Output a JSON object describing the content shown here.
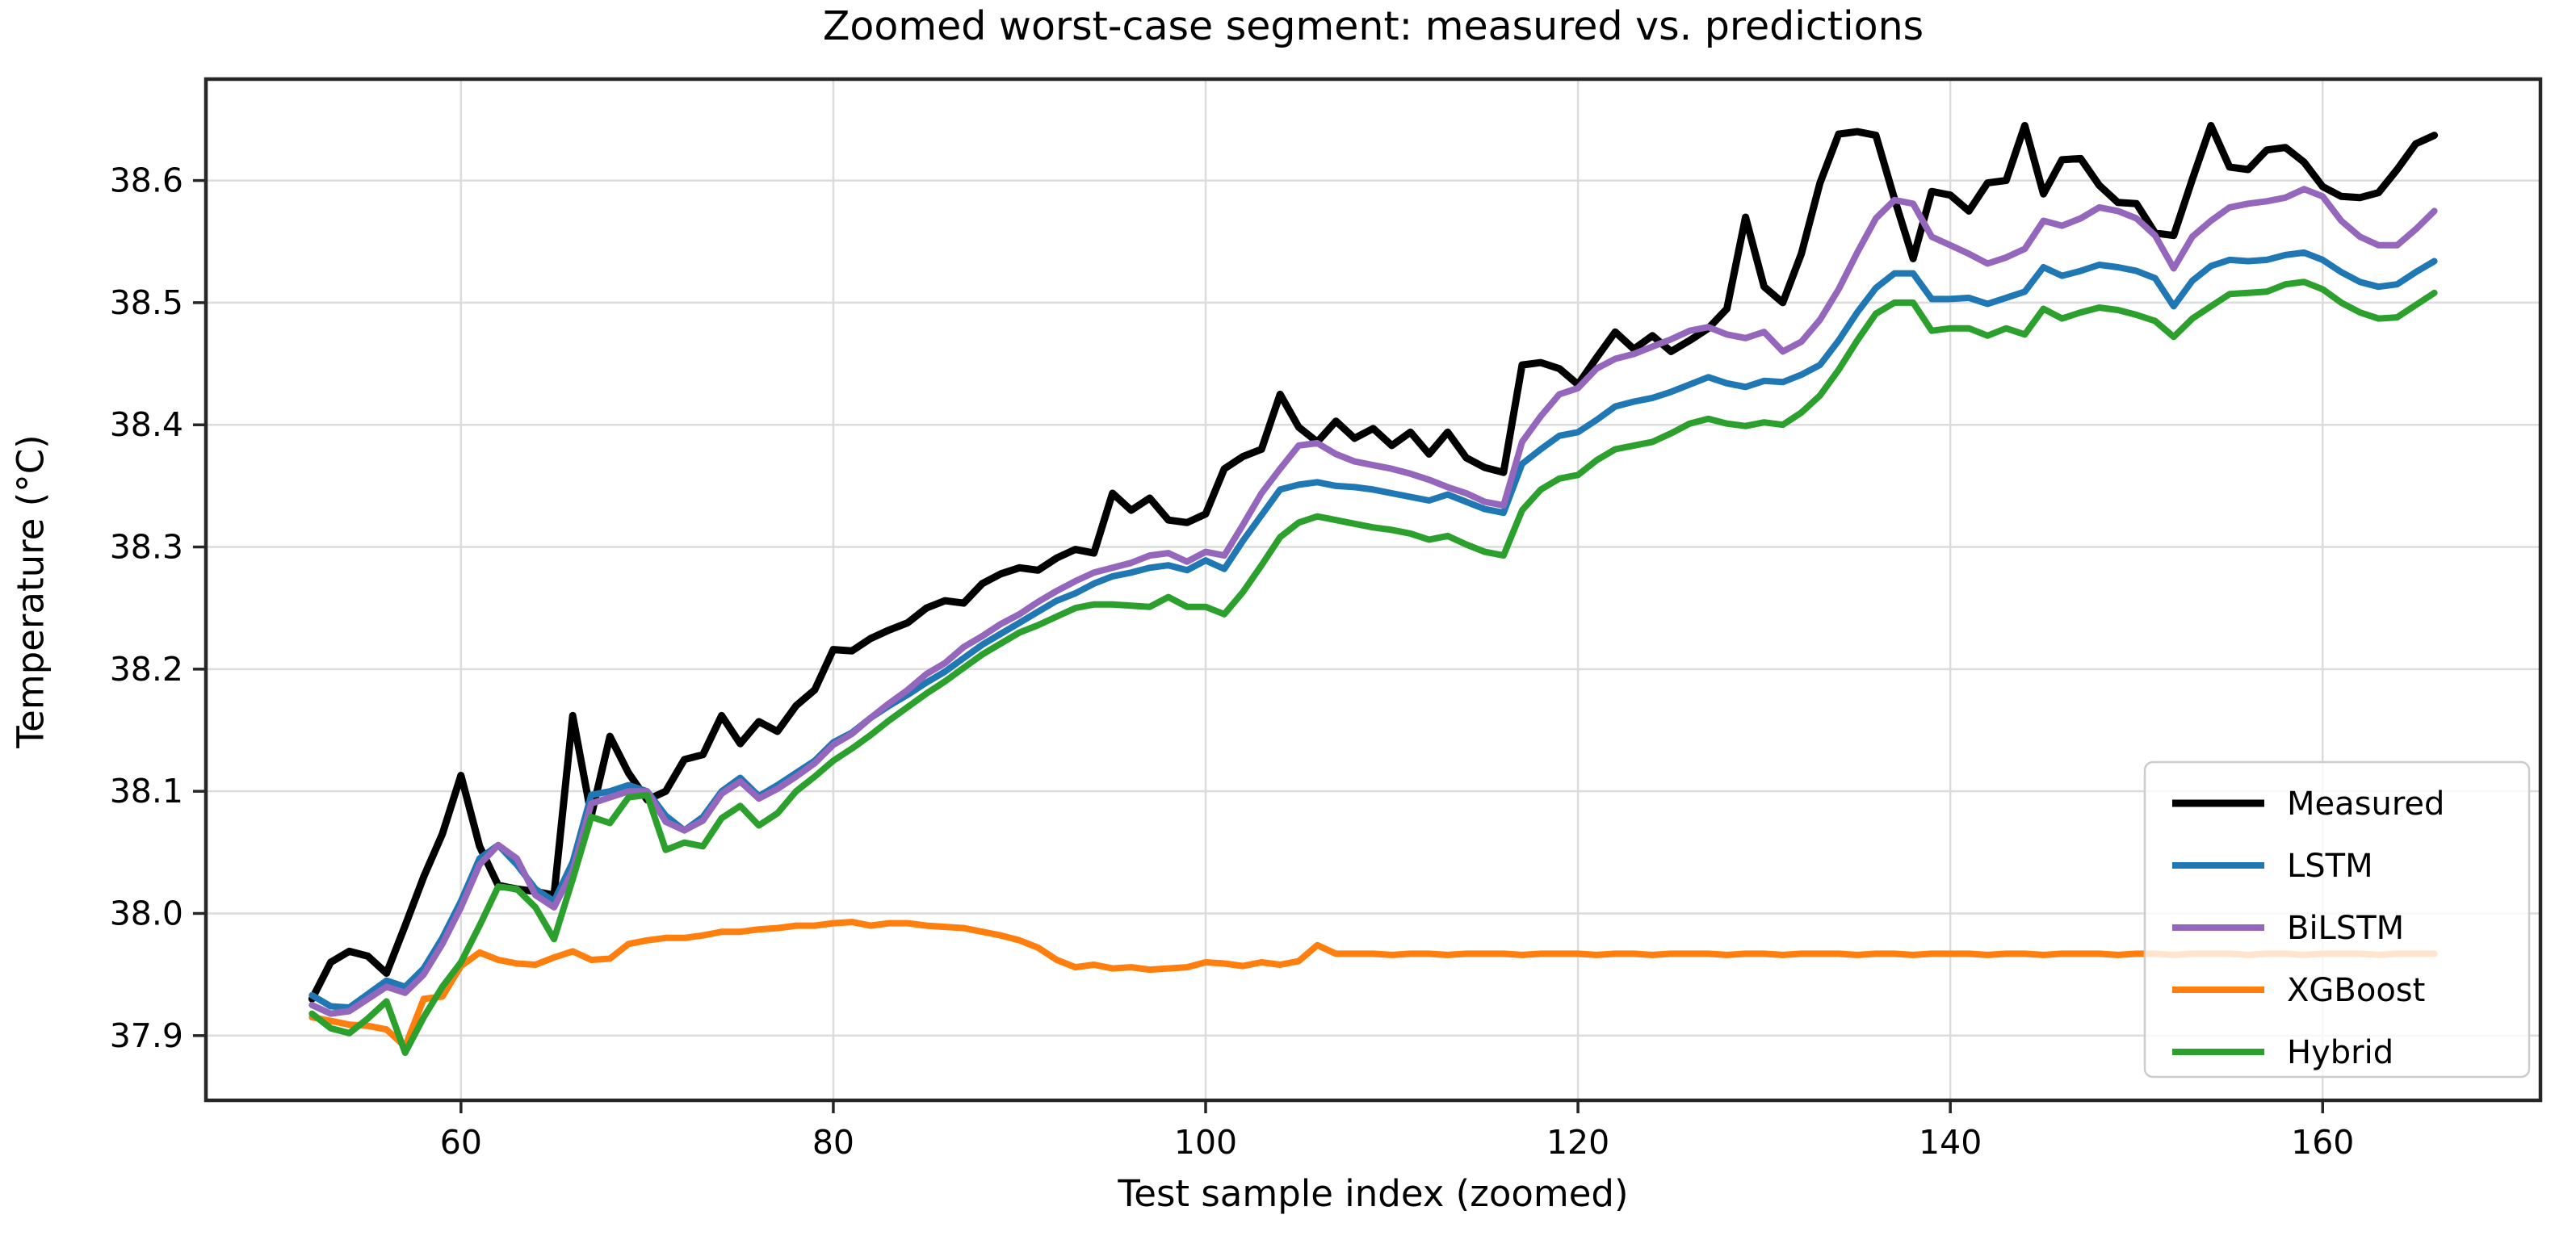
{
  "chart_data": {
    "type": "line",
    "title": "Zoomed worst-case segment: measured vs. predictions",
    "xlabel": "Test sample index (zoomed)",
    "ylabel": "Temperature (°C)",
    "xlim": [
      46.3,
      171.7
    ],
    "ylim": [
      37.847,
      38.683
    ],
    "x_ticks": [
      60,
      80,
      100,
      120,
      140,
      160
    ],
    "y_ticks": [
      37.9,
      38.0,
      38.1,
      38.2,
      38.3,
      38.4,
      38.5,
      38.6
    ],
    "grid": true,
    "grid_color": "#dcdcdc",
    "spine_color": "#262626",
    "legend_position": "lower right",
    "legend_frame_alpha": 0.8,
    "x_start": 52,
    "series": [
      {
        "name": "Measured",
        "color": "#000000",
        "linewidth": 9,
        "values": [
          37.93,
          37.96,
          37.969,
          37.965,
          37.951,
          37.99,
          38.03,
          38.065,
          38.113,
          38.055,
          38.023,
          38.02,
          38.018,
          38.015,
          38.162,
          38.08,
          38.145,
          38.115,
          38.093,
          38.1,
          38.126,
          38.13,
          38.162,
          38.139,
          38.157,
          38.149,
          38.17,
          38.183,
          38.216,
          38.215,
          38.225,
          38.232,
          38.238,
          38.25,
          38.256,
          38.254,
          38.27,
          38.278,
          38.283,
          38.281,
          38.291,
          38.298,
          38.295,
          38.344,
          38.33,
          38.34,
          38.322,
          38.32,
          38.327,
          38.364,
          38.374,
          38.38,
          38.425,
          38.398,
          38.386,
          38.403,
          38.389,
          38.397,
          38.383,
          38.394,
          38.376,
          38.394,
          38.373,
          38.365,
          38.361,
          38.449,
          38.451,
          38.446,
          38.433,
          38.455,
          38.476,
          38.462,
          38.473,
          38.46,
          38.469,
          38.479,
          38.495,
          38.57,
          38.513,
          38.5,
          38.54,
          38.598,
          38.638,
          38.64,
          38.637,
          38.585,
          38.536,
          38.591,
          38.588,
          38.575,
          38.598,
          38.6,
          38.645,
          38.589,
          38.617,
          38.618,
          38.596,
          38.582,
          38.581,
          38.557,
          38.555,
          38.601,
          38.645,
          38.611,
          38.609,
          38.625,
          38.627,
          38.615,
          38.595,
          38.587,
          38.586,
          38.59,
          38.609,
          38.63,
          38.637
        ]
      },
      {
        "name": "LSTM",
        "color": "#1f77b4",
        "linewidth": 8,
        "values": [
          37.933,
          37.924,
          37.923,
          37.934,
          37.945,
          37.94,
          37.955,
          37.98,
          38.01,
          38.045,
          38.056,
          38.04,
          38.02,
          38.01,
          38.042,
          38.097,
          38.1,
          38.105,
          38.1,
          38.08,
          38.068,
          38.079,
          38.1,
          38.111,
          38.096,
          38.105,
          38.115,
          38.125,
          38.14,
          38.148,
          38.16,
          38.17,
          38.179,
          38.189,
          38.198,
          38.209,
          38.22,
          38.229,
          38.238,
          38.247,
          38.256,
          38.262,
          38.27,
          38.276,
          38.279,
          38.283,
          38.285,
          38.281,
          38.289,
          38.282,
          38.305,
          38.326,
          38.347,
          38.351,
          38.353,
          38.35,
          38.349,
          38.347,
          38.344,
          38.341,
          38.338,
          38.343,
          38.337,
          38.331,
          38.328,
          38.368,
          38.38,
          38.391,
          38.394,
          38.404,
          38.415,
          38.419,
          38.422,
          38.427,
          38.433,
          38.439,
          38.434,
          38.431,
          38.436,
          38.435,
          38.441,
          38.449,
          38.469,
          38.492,
          38.512,
          38.524,
          38.524,
          38.503,
          38.503,
          38.504,
          38.499,
          38.504,
          38.509,
          38.529,
          38.522,
          38.526,
          38.531,
          38.529,
          38.526,
          38.52,
          38.497,
          38.518,
          38.53,
          38.535,
          38.534,
          38.535,
          38.539,
          38.541,
          38.535,
          38.525,
          38.517,
          38.513,
          38.515,
          38.525,
          38.534
        ]
      },
      {
        "name": "BiLSTM",
        "color": "#9467bd",
        "linewidth": 8,
        "values": [
          37.925,
          37.918,
          37.92,
          37.93,
          37.94,
          37.935,
          37.95,
          37.975,
          38.005,
          38.04,
          38.056,
          38.045,
          38.015,
          38.005,
          38.035,
          38.09,
          38.095,
          38.1,
          38.1,
          38.075,
          38.068,
          38.076,
          38.098,
          38.108,
          38.094,
          38.102,
          38.112,
          38.123,
          38.138,
          38.147,
          38.16,
          38.172,
          38.183,
          38.196,
          38.205,
          38.218,
          38.227,
          38.237,
          38.245,
          38.255,
          38.264,
          38.272,
          38.279,
          38.283,
          38.287,
          38.293,
          38.295,
          38.288,
          38.296,
          38.293,
          38.318,
          38.344,
          38.364,
          38.383,
          38.385,
          38.376,
          38.37,
          38.367,
          38.364,
          38.36,
          38.355,
          38.349,
          38.344,
          38.337,
          38.334,
          38.386,
          38.407,
          38.425,
          38.43,
          38.446,
          38.454,
          38.458,
          38.464,
          38.47,
          38.477,
          38.48,
          38.474,
          38.471,
          38.476,
          38.46,
          38.468,
          38.486,
          38.511,
          38.541,
          38.569,
          38.584,
          38.581,
          38.554,
          38.547,
          38.54,
          38.532,
          38.537,
          38.544,
          38.567,
          38.563,
          38.569,
          38.578,
          38.575,
          38.569,
          38.555,
          38.528,
          38.554,
          38.567,
          38.578,
          38.581,
          38.583,
          38.586,
          38.593,
          38.587,
          38.567,
          38.554,
          38.547,
          38.547,
          38.56,
          38.575
        ]
      },
      {
        "name": "XGBoost",
        "color": "#ff7f0e",
        "linewidth": 8,
        "values": [
          37.915,
          37.912,
          37.909,
          37.908,
          37.905,
          37.891,
          37.93,
          37.932,
          37.957,
          37.968,
          37.962,
          37.959,
          37.958,
          37.964,
          37.969,
          37.962,
          37.963,
          37.975,
          37.978,
          37.98,
          37.98,
          37.982,
          37.985,
          37.985,
          37.987,
          37.988,
          37.99,
          37.99,
          37.992,
          37.993,
          37.99,
          37.992,
          37.992,
          37.99,
          37.989,
          37.988,
          37.985,
          37.982,
          37.978,
          37.972,
          37.962,
          37.956,
          37.958,
          37.955,
          37.956,
          37.954,
          37.955,
          37.956,
          37.96,
          37.959,
          37.957,
          37.96,
          37.958,
          37.961,
          37.974,
          37.967,
          37.967,
          37.967,
          37.966,
          37.967,
          37.967,
          37.966,
          37.967,
          37.967,
          37.967,
          37.966,
          37.967,
          37.967,
          37.967,
          37.966,
          37.967,
          37.967,
          37.966,
          37.967,
          37.967,
          37.967,
          37.966,
          37.967,
          37.967,
          37.966,
          37.967,
          37.967,
          37.967,
          37.966,
          37.967,
          37.967,
          37.966,
          37.967,
          37.967,
          37.967,
          37.966,
          37.967,
          37.967,
          37.966,
          37.967,
          37.967,
          37.967,
          37.966,
          37.967,
          37.967,
          37.966,
          37.967,
          37.967,
          37.967,
          37.966,
          37.967,
          37.967,
          37.966,
          37.967,
          37.967,
          37.967,
          37.966,
          37.967,
          37.967,
          37.967
        ]
      },
      {
        "name": "Hybrid",
        "color": "#2ca02c",
        "linewidth": 8,
        "values": [
          37.918,
          37.906,
          37.902,
          37.914,
          37.928,
          37.886,
          37.915,
          37.94,
          37.96,
          37.99,
          38.022,
          38.02,
          38.005,
          37.979,
          38.028,
          38.079,
          38.074,
          38.095,
          38.097,
          38.052,
          38.058,
          38.055,
          38.078,
          38.088,
          38.072,
          38.082,
          38.1,
          38.112,
          38.125,
          38.135,
          38.146,
          38.158,
          38.169,
          38.18,
          38.19,
          38.201,
          38.212,
          38.221,
          38.23,
          38.236,
          38.243,
          38.25,
          38.253,
          38.253,
          38.252,
          38.251,
          38.259,
          38.251,
          38.251,
          38.245,
          38.263,
          38.285,
          38.308,
          38.32,
          38.325,
          38.322,
          38.319,
          38.316,
          38.314,
          38.311,
          38.306,
          38.309,
          38.302,
          38.296,
          38.293,
          38.33,
          38.347,
          38.356,
          38.359,
          38.371,
          38.38,
          38.383,
          38.386,
          38.393,
          38.401,
          38.405,
          38.401,
          38.399,
          38.402,
          38.4,
          38.41,
          38.424,
          38.445,
          38.469,
          38.491,
          38.5,
          38.5,
          38.477,
          38.479,
          38.479,
          38.473,
          38.479,
          38.474,
          38.495,
          38.487,
          38.492,
          38.496,
          38.494,
          38.49,
          38.485,
          38.472,
          38.487,
          38.497,
          38.507,
          38.508,
          38.509,
          38.515,
          38.517,
          38.511,
          38.5,
          38.492,
          38.487,
          38.488,
          38.498,
          38.508
        ]
      }
    ]
  }
}
